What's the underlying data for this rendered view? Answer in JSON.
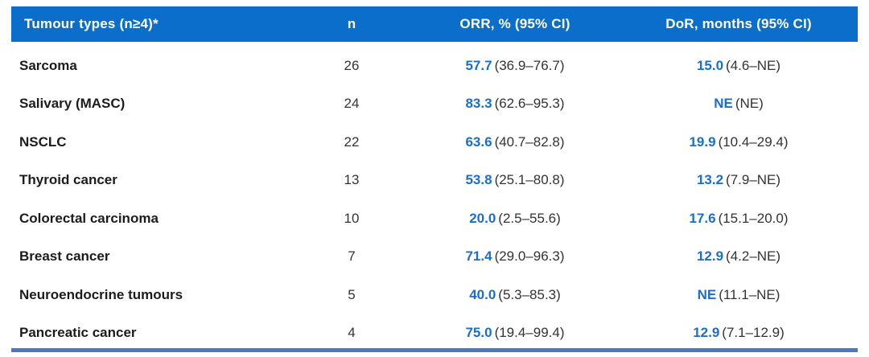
{
  "colors": {
    "header_bg": "#0c6ecb",
    "header_text": "#ffffff",
    "accent_blue": "#1b6ec9",
    "bottom_bar": "#4a79bf",
    "text_dark": "#1c1c1c",
    "text_body": "#333333"
  },
  "table": {
    "columns": [
      "Tumour types (n≥4)*",
      "n",
      "ORR, % (95% CI)",
      "DoR, months (95% CI)"
    ],
    "rows": [
      {
        "type": "Sarcoma",
        "n": "26",
        "orr": "57.7",
        "orr_ci": "(36.9–76.7)",
        "dor": "15.0",
        "dor_ci": "(4.6–NE)"
      },
      {
        "type": "Salivary (MASC)",
        "n": "24",
        "orr": "83.3",
        "orr_ci": "(62.6–95.3)",
        "dor": "NE",
        "dor_ci": "(NE)"
      },
      {
        "type": "NSCLC",
        "n": "22",
        "orr": "63.6",
        "orr_ci": "(40.7–82.8)",
        "dor": "19.9",
        "dor_ci": "(10.4–29.4)"
      },
      {
        "type": "Thyroid cancer",
        "n": "13",
        "orr": "53.8",
        "orr_ci": "(25.1–80.8)",
        "dor": "13.2",
        "dor_ci": "(7.9–NE)"
      },
      {
        "type": "Colorectal carcinoma",
        "n": "10",
        "orr": "20.0",
        "orr_ci": "(2.5–55.6)",
        "dor": "17.6",
        "dor_ci": "(15.1–20.0)"
      },
      {
        "type": "Breast cancer",
        "n": "7",
        "orr": "71.4",
        "orr_ci": "(29.0–96.3)",
        "dor": "12.9",
        "dor_ci": "(4.2–NE)"
      },
      {
        "type": "Neuroendocrine tumours",
        "n": "5",
        "orr": "40.0",
        "orr_ci": "(5.3–85.3)",
        "dor": "NE",
        "dor_ci": "(11.1–NE)"
      },
      {
        "type": "Pancreatic cancer",
        "n": "4",
        "orr": "75.0",
        "orr_ci": "(19.4–99.4)",
        "dor": "12.9",
        "dor_ci": "(7.1–12.9)"
      }
    ]
  }
}
